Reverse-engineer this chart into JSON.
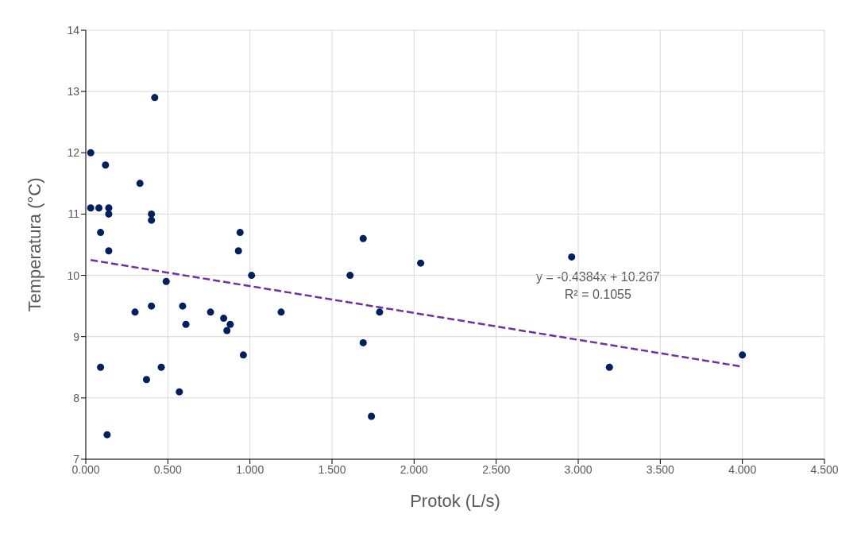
{
  "chart_data": {
    "type": "scatter",
    "xlabel": "Protok (L/s)",
    "ylabel": "Temperatura (°C)",
    "xlim": [
      0,
      4.5
    ],
    "xticks": [
      {
        "value": 0,
        "label": "0.000"
      },
      {
        "value": 0.5,
        "label": "0.500"
      },
      {
        "value": 1,
        "label": "1.000"
      },
      {
        "value": 1.5,
        "label": "1.500"
      },
      {
        "value": 2,
        "label": "2.000"
      },
      {
        "value": 2.5,
        "label": "2.500"
      },
      {
        "value": 3,
        "label": "3.000"
      },
      {
        "value": 3.5,
        "label": "3.500"
      },
      {
        "value": 4,
        "label": "4.000"
      },
      {
        "value": 4.5,
        "label": "4.500"
      }
    ],
    "ylim": [
      7,
      14
    ],
    "yticks": [
      7,
      8,
      9,
      10,
      11,
      12,
      13,
      14
    ],
    "grid": true,
    "marker": "circle",
    "series": [
      {
        "color": "#002060",
        "x": [
          0.03,
          0.12,
          0.03,
          0.08,
          0.14,
          0.14,
          0.09,
          0.14,
          0.33,
          0.42,
          0.4,
          0.4,
          0.49,
          0.3,
          0.4,
          0.59,
          0.61,
          0.76,
          0.84,
          0.88,
          0.86,
          0.96,
          0.94,
          0.93,
          1.01,
          0.09,
          0.37,
          0.46,
          0.57,
          0.13,
          1.19,
          1.61,
          2.04,
          1.79,
          1.69,
          1.74,
          1.69,
          2.96,
          3.19,
          4.0
        ],
        "values": [
          12.0,
          11.8,
          11.1,
          11.1,
          11.1,
          11.0,
          10.7,
          10.4,
          11.5,
          12.9,
          11.0,
          10.9,
          9.9,
          9.4,
          9.5,
          9.5,
          9.2,
          9.4,
          9.3,
          9.2,
          9.1,
          8.7,
          10.7,
          10.4,
          10.0,
          8.5,
          8.3,
          8.5,
          8.1,
          7.4,
          9.4,
          10.0,
          10.2,
          9.4,
          8.9,
          7.7,
          10.6,
          10.3,
          8.5,
          8.7
        ]
      },
      {
        "type": "line",
        "color": "#7030a0",
        "line_style": "dashed",
        "marker": "none",
        "x": [
          0.03,
          4.0
        ],
        "values": [
          10.25,
          8.51
        ]
      }
    ],
    "annotations": [
      "y = -0.4384x + 10.267\nR² = 0.1055"
    ]
  }
}
